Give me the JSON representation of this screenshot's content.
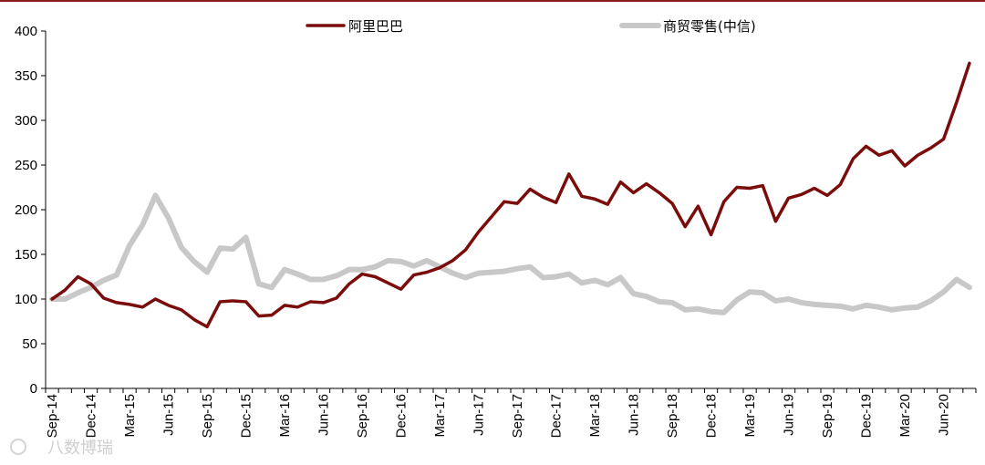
{
  "chart_data": {
    "type": "line",
    "x": [
      "Sep-14",
      "Oct-14",
      "Nov-14",
      "Dec-14",
      "Jan-15",
      "Feb-15",
      "Mar-15",
      "Apr-15",
      "May-15",
      "Jun-15",
      "Jul-15",
      "Aug-15",
      "Sep-15",
      "Oct-15",
      "Nov-15",
      "Dec-15",
      "Jan-16",
      "Feb-16",
      "Mar-16",
      "Apr-16",
      "May-16",
      "Jun-16",
      "Jul-16",
      "Aug-16",
      "Sep-16",
      "Oct-16",
      "Nov-16",
      "Dec-16",
      "Jan-17",
      "Feb-17",
      "Mar-17",
      "Apr-17",
      "May-17",
      "Jun-17",
      "Jul-17",
      "Aug-17",
      "Sep-17",
      "Oct-17",
      "Nov-17",
      "Dec-17",
      "Jan-18",
      "Feb-18",
      "Mar-18",
      "Apr-18",
      "May-18",
      "Jun-18",
      "Jul-18",
      "Aug-18",
      "Sep-18",
      "Oct-18",
      "Nov-18",
      "Dec-18",
      "Jan-19",
      "Feb-19",
      "Mar-19",
      "Apr-19",
      "May-19",
      "Jun-19",
      "Jul-19",
      "Aug-19",
      "Sep-19",
      "Oct-19",
      "Nov-19",
      "Dec-19",
      "Jan-20",
      "Feb-20",
      "Mar-20",
      "Apr-20",
      "May-20",
      "Jun-20",
      "Jul-20",
      "Aug-20"
    ],
    "tick_labels": [
      "Sep-14",
      "Dec-14",
      "Mar-15",
      "Jun-15",
      "Sep-15",
      "Dec-15",
      "Mar-16",
      "Jun-16",
      "Sep-16",
      "Dec-16",
      "Mar-17",
      "Jun-17",
      "Sep-17",
      "Dec-17",
      "Mar-18",
      "Jun-18",
      "Sep-18",
      "Dec-18",
      "Mar-19",
      "Jun-19",
      "Sep-19",
      "Dec-19",
      "Mar-20",
      "Jun-20"
    ],
    "y_ticks": [
      0,
      50,
      100,
      150,
      200,
      250,
      300,
      350,
      400
    ],
    "ylim": [
      0,
      400
    ],
    "legend_position": "top-center",
    "series": [
      {
        "name": "阿里巴巴",
        "color": "#7b0c0c",
        "values": [
          100,
          110,
          125,
          117,
          101,
          96,
          94,
          91,
          100,
          93,
          88,
          77,
          69,
          97,
          98,
          97,
          81,
          82,
          93,
          91,
          97,
          96,
          101,
          117,
          128,
          125,
          118,
          111,
          127,
          130,
          135,
          143,
          155,
          175,
          192,
          209,
          207,
          223,
          214,
          208,
          240,
          215,
          212,
          206,
          231,
          219,
          229,
          219,
          207,
          181,
          204,
          172,
          209,
          225,
          224,
          227,
          187,
          213,
          217,
          224,
          216,
          228,
          257,
          271,
          261,
          266,
          249,
          261,
          269,
          279,
          320,
          364
        ]
      },
      {
        "name": "商贸零售(中信)",
        "color": "#c8c8c8",
        "values": [
          100,
          100,
          107,
          113,
          121,
          127,
          160,
          183,
          216,
          191,
          158,
          142,
          130,
          157,
          156,
          169,
          117,
          113,
          133,
          128,
          122,
          122,
          126,
          133,
          133,
          136,
          143,
          142,
          137,
          143,
          136,
          129,
          124,
          129,
          130,
          131,
          134,
          136,
          124,
          125,
          128,
          118,
          121,
          116,
          124,
          106,
          103,
          97,
          96,
          88,
          89,
          86,
          85,
          99,
          108,
          107,
          98,
          100,
          96,
          94,
          93,
          92,
          89,
          93,
          91,
          88,
          90,
          91,
          98,
          108,
          122,
          113
        ]
      }
    ]
  },
  "watermark": "八数博瑞"
}
